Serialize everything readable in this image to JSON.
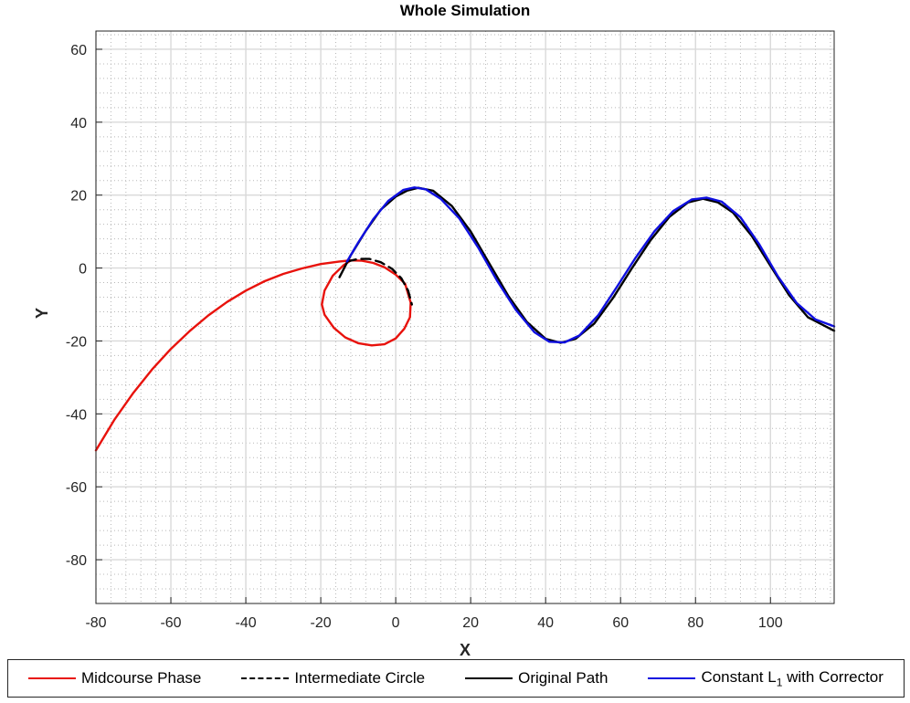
{
  "chart_data": {
    "type": "line",
    "title": "Whole Simulation",
    "xlabel": "X",
    "ylabel": "Y",
    "xlim": [
      -80,
      117
    ],
    "ylim": [
      -92,
      65
    ],
    "x_ticks": [
      -80,
      -60,
      -40,
      -20,
      0,
      20,
      40,
      60,
      80,
      100
    ],
    "y_ticks": [
      60,
      40,
      20,
      0,
      -20,
      -40,
      -60,
      -80
    ],
    "grid": "major and minor",
    "legend": {
      "placement": "bottom",
      "entries": [
        "Midcourse Phase",
        "Intermediate Circle",
        "Original Path",
        "Constant L",
        "with Corrector"
      ]
    },
    "series": [
      {
        "name": "Midcourse Phase",
        "color": "#e8120c",
        "style": "solid",
        "x": [
          -80,
          -75,
          -70,
          -65,
          -60,
          -55,
          -50,
          -45,
          -40,
          -35,
          -30,
          -25,
          -20,
          -15,
          -12
        ],
        "y": [
          -50,
          -41.5,
          -34.2,
          -27.8,
          -22.2,
          -17.3,
          -13,
          -9.3,
          -6.2,
          -3.6,
          -1.6,
          -0.1,
          1.1,
          1.8,
          2.1
        ]
      },
      {
        "name": "Midcourse Phase (circle)",
        "color": "#e8120c",
        "style": "solid",
        "x": [
          -12,
          -9,
          -6,
          -3,
          0,
          2.5,
          4,
          3.8,
          2.3,
          0,
          -3,
          -6.4,
          -10,
          -13.5,
          -16.5,
          -19,
          -19.7,
          -19,
          -16.8,
          -14,
          -12
        ],
        "y": [
          2.1,
          2,
          1.4,
          0.2,
          -1.8,
          -4.3,
          -9.5,
          -13.5,
          -16.6,
          -19.3,
          -20.9,
          -21.2,
          -20.6,
          -19,
          -16.4,
          -12.8,
          -10,
          -6.2,
          -2.1,
          0.7,
          2.1
        ]
      },
      {
        "name": "Intermediate Circle",
        "color": "#000000",
        "style": "dashed",
        "x": [
          -13,
          -10,
          -7,
          -4,
          -1,
          1.5,
          3.3,
          4.3
        ],
        "y": [
          1.8,
          2.5,
          2.5,
          1.6,
          -0.2,
          -2.8,
          -6.2,
          -10
        ]
      },
      {
        "name": "Original Path",
        "color": "#000000",
        "style": "solid",
        "x": [
          -15,
          -12,
          -8,
          -4,
          0,
          3,
          6,
          10,
          15,
          20,
          25,
          30,
          35,
          40,
          44,
          48,
          53,
          58,
          63,
          68,
          73,
          78,
          82,
          86,
          90,
          95,
          100,
          105,
          110,
          117
        ],
        "y": [
          -2.5,
          3.5,
          10.2,
          16,
          19.6,
          21.2,
          22,
          21.2,
          17,
          10,
          1.2,
          -7.6,
          -14.8,
          -19.4,
          -20.5,
          -19.4,
          -15.2,
          -8.2,
          -0.1,
          7.6,
          14,
          18,
          19,
          18,
          15.2,
          8.8,
          0.6,
          -7.5,
          -13.5,
          -17.2
        ]
      },
      {
        "name": "Constant L with Corrector",
        "color": "#0f0fe0",
        "style": "solid",
        "x": [
          -13,
          -10,
          -6,
          -2,
          2,
          5,
          8,
          12,
          17,
          22,
          27,
          32,
          37,
          41,
          45,
          49,
          54,
          59,
          64,
          69,
          74,
          79,
          83,
          87,
          92,
          97,
          102,
          107,
          112,
          117
        ],
        "y": [
          1.8,
          7,
          13.4,
          18.4,
          21.4,
          22.1,
          21.6,
          19,
          13.6,
          5.6,
          -3.4,
          -11.4,
          -17.6,
          -20.2,
          -20.4,
          -18.5,
          -13,
          -5.2,
          2.8,
          10,
          15.6,
          18.8,
          19.3,
          18.2,
          13.9,
          6.5,
          -2.3,
          -9.6,
          -14.1,
          -16
        ]
      }
    ]
  }
}
